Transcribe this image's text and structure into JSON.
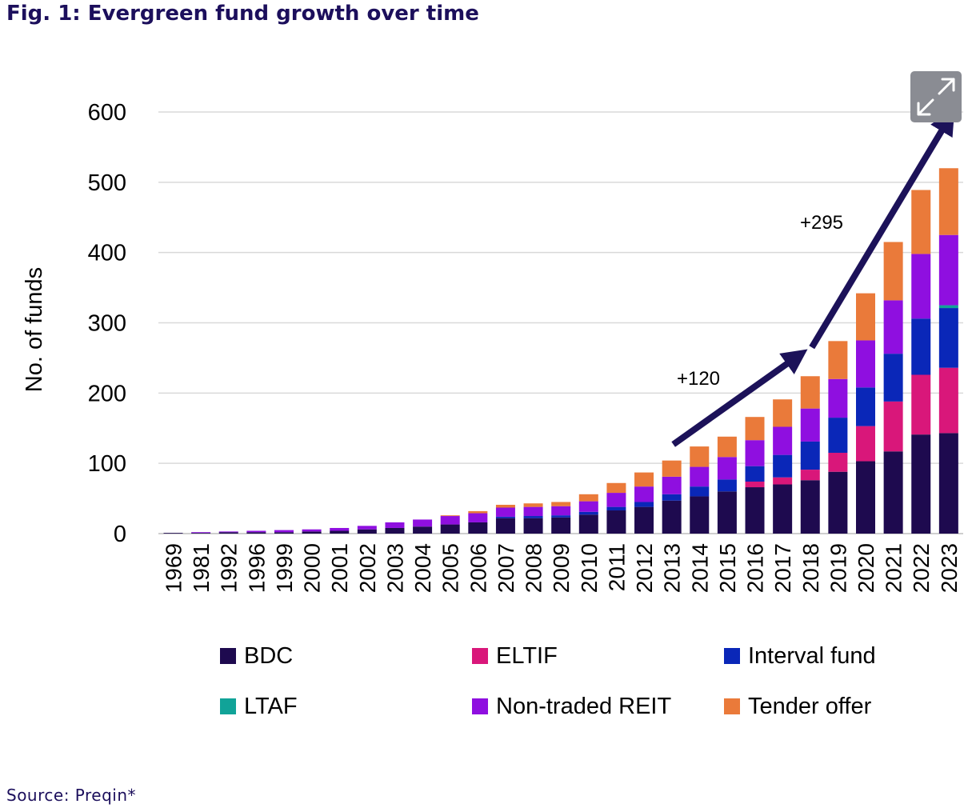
{
  "title": "Fig. 1: Evergreen fund growth over time",
  "source": "Source: Preqin*",
  "expand_icon": "expand-arrows-icon",
  "chart_data": {
    "type": "bar",
    "stacked": true,
    "title": "Fig. 1: Evergreen fund growth over time",
    "ylabel": "No. of funds",
    "xlabel": "",
    "ylim": [
      0,
      600
    ],
    "yticks": [
      0,
      100,
      200,
      300,
      400,
      500,
      600
    ],
    "grid": true,
    "legend_position": "bottom",
    "categories": [
      "1969",
      "1981",
      "1992",
      "1996",
      "1999",
      "2000",
      "2001",
      "2002",
      "2003",
      "2004",
      "2005",
      "2006",
      "2007",
      "2008",
      "2009",
      "2010",
      "2011",
      "2012",
      "2013",
      "2014",
      "2015",
      "2016",
      "2017",
      "2018",
      "2019",
      "2020",
      "2021",
      "2022",
      "2023"
    ],
    "series": [
      {
        "name": "BDC",
        "color": "#1e0a4f",
        "values": [
          1,
          1,
          2,
          2,
          2,
          3,
          4,
          6,
          8,
          10,
          13,
          16,
          22,
          22,
          23,
          27,
          33,
          38,
          47,
          53,
          60,
          66,
          70,
          76,
          88,
          103,
          117,
          141,
          143
        ]
      },
      {
        "name": "ELTIF",
        "color": "#d9177a",
        "values": [
          0,
          0,
          0,
          0,
          0,
          0,
          0,
          0,
          0,
          0,
          0,
          0,
          0,
          0,
          0,
          0,
          0,
          0,
          0,
          0,
          0,
          8,
          10,
          15,
          27,
          50,
          71,
          85,
          93
        ]
      },
      {
        "name": "Interval fund",
        "color": "#0a27b8",
        "values": [
          0,
          0,
          0,
          0,
          0,
          0,
          0,
          0,
          0,
          0,
          0,
          0,
          2,
          3,
          3,
          4,
          5,
          7,
          9,
          14,
          17,
          22,
          32,
          40,
          50,
          55,
          68,
          80,
          85
        ]
      },
      {
        "name": "LTAF",
        "color": "#11a398",
        "values": [
          0,
          0,
          0,
          0,
          0,
          0,
          0,
          0,
          0,
          0,
          0,
          0,
          0,
          0,
          0,
          0,
          0,
          0,
          0,
          0,
          0,
          0,
          0,
          0,
          0,
          0,
          0,
          0,
          4
        ]
      },
      {
        "name": "Non-traded REIT",
        "color": "#8f0fe0",
        "values": [
          0,
          1,
          1,
          2,
          3,
          3,
          4,
          5,
          8,
          10,
          12,
          13,
          13,
          13,
          13,
          15,
          20,
          22,
          25,
          28,
          32,
          37,
          40,
          47,
          55,
          67,
          76,
          92,
          100
        ]
      },
      {
        "name": "Tender offer",
        "color": "#ea7a3a",
        "values": [
          0,
          0,
          0,
          0,
          0,
          0,
          0,
          0,
          0,
          0,
          1,
          3,
          4,
          5,
          6,
          10,
          14,
          20,
          23,
          29,
          29,
          33,
          39,
          46,
          54,
          67,
          83,
          91,
          95
        ]
      }
    ],
    "annotations": [
      {
        "text": "+120",
        "from_year": "2013",
        "to_year": "2018",
        "from_value": 127,
        "to_value": 253
      },
      {
        "text": "+295",
        "from_year": "2018",
        "to_year": "2023",
        "from_value": 265,
        "to_value": 590
      }
    ]
  }
}
